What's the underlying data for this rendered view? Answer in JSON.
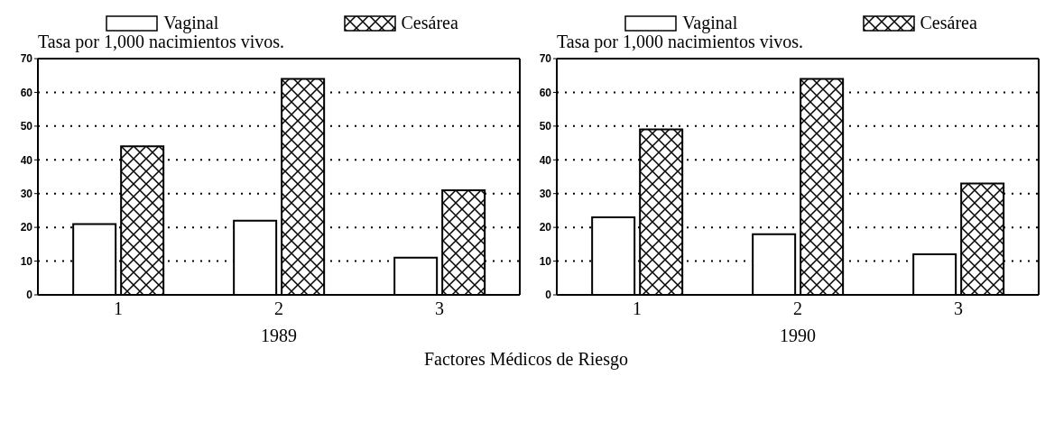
{
  "chart_data": [
    {
      "type": "bar",
      "categories": [
        "1",
        "2",
        "3"
      ],
      "xlabel": "1989",
      "ylabel": "Tasa por 1,000 nacimientos vivos.",
      "ylim": [
        0,
        70
      ],
      "yticks": [
        0,
        10,
        20,
        30,
        40,
        50,
        60,
        70
      ],
      "grid": "y",
      "legend": "top",
      "annotations": [
        "Factores Médicos de Riesgo"
      ],
      "series": [
        {
          "name": "Vaginal",
          "color": "#ffffff",
          "values": [
            21,
            22,
            11
          ]
        },
        {
          "name": "Cesárea",
          "color": "#000000",
          "values": [
            44,
            64,
            31
          ]
        }
      ]
    },
    {
      "type": "bar",
      "categories": [
        "1",
        "2",
        "3"
      ],
      "xlabel": "1990",
      "ylabel": "Tasa por 1,000 nacimientos vivos.",
      "ylim": [
        0,
        70
      ],
      "yticks": [
        0,
        10,
        20,
        30,
        40,
        50,
        60,
        70
      ],
      "grid": "y",
      "legend": "top",
      "series": [
        {
          "name": "Vaginal",
          "color": "#ffffff",
          "values": [
            23,
            18,
            12
          ]
        },
        {
          "name": "Cesárea",
          "color": "#000000",
          "values": [
            49,
            64,
            33
          ]
        }
      ]
    }
  ]
}
